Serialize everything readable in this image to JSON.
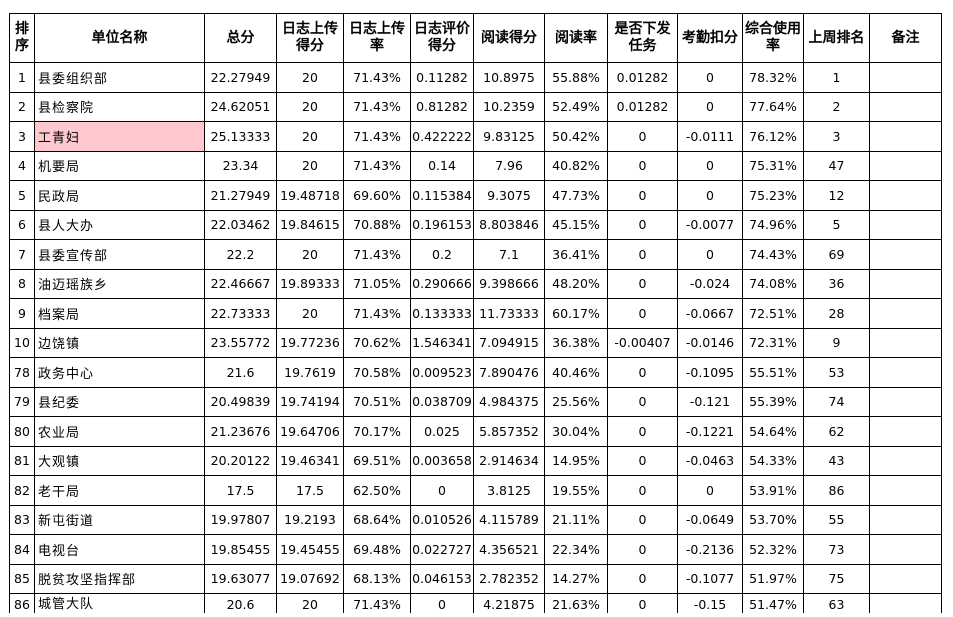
{
  "headers": [
    "排序",
    "单位名称",
    "总分",
    "日志上传得分",
    "日志上传率",
    "日志评价得分",
    "阅读得分",
    "阅读率",
    "是否下发任务",
    "考勤扣分",
    "综合使用率",
    "上周排名",
    "备注"
  ],
  "highlight_color": "#ffc7ce",
  "rows": [
    [
      "1",
      "县委组织部",
      "22.27949",
      "20",
      "71.43%",
      "0.11282",
      "10.8975",
      "55.88%",
      "0.01282",
      "0",
      "78.32%",
      "1",
      ""
    ],
    [
      "2",
      "县检察院",
      "24.62051",
      "20",
      "71.43%",
      "0.81282",
      "10.2359",
      "52.49%",
      "0.01282",
      "0",
      "77.64%",
      "2",
      ""
    ],
    [
      "3",
      "工青妇",
      "25.13333",
      "20",
      "71.43%",
      "0.422222",
      "9.83125",
      "50.42%",
      "0",
      "-0.0111",
      "76.12%",
      "3",
      ""
    ],
    [
      "4",
      "机要局",
      "23.34",
      "20",
      "71.43%",
      "0.14",
      "7.96",
      "40.82%",
      "0",
      "0",
      "75.31%",
      "47",
      ""
    ],
    [
      "5",
      "民政局",
      "21.27949",
      "19.48718",
      "69.60%",
      "0.115384",
      "9.3075",
      "47.73%",
      "0",
      "0",
      "75.23%",
      "12",
      ""
    ],
    [
      "6",
      "县人大办",
      "22.03462",
      "19.84615",
      "70.88%",
      "0.196153",
      "8.803846",
      "45.15%",
      "0",
      "-0.0077",
      "74.96%",
      "5",
      ""
    ],
    [
      "7",
      "县委宣传部",
      "22.2",
      "20",
      "71.43%",
      "0.2",
      "7.1",
      "36.41%",
      "0",
      "0",
      "74.43%",
      "69",
      ""
    ],
    [
      "8",
      "油迈瑶族乡",
      "22.46667",
      "19.89333",
      "71.05%",
      "0.290666",
      "9.398666",
      "48.20%",
      "0",
      "-0.024",
      "74.08%",
      "36",
      ""
    ],
    [
      "9",
      "档案局",
      "22.73333",
      "20",
      "71.43%",
      "0.133333",
      "11.73333",
      "60.17%",
      "0",
      "-0.0667",
      "72.51%",
      "28",
      ""
    ],
    [
      "10",
      "边饶镇",
      "23.55772",
      "19.77236",
      "70.62%",
      "1.546341",
      "7.094915",
      "36.38%",
      "-0.00407",
      "-0.0146",
      "72.31%",
      "9",
      ""
    ],
    [
      "78",
      "政务中心",
      "21.6",
      "19.7619",
      "70.58%",
      "0.009523",
      "7.890476",
      "40.46%",
      "0",
      "-0.1095",
      "55.51%",
      "53",
      ""
    ],
    [
      "79",
      "县纪委",
      "20.49839",
      "19.74194",
      "70.51%",
      "0.038709",
      "4.984375",
      "25.56%",
      "0",
      "-0.121",
      "55.39%",
      "74",
      ""
    ],
    [
      "80",
      "农业局",
      "21.23676",
      "19.64706",
      "70.17%",
      "0.025",
      "5.857352",
      "30.04%",
      "0",
      "-0.1221",
      "54.64%",
      "62",
      ""
    ],
    [
      "81",
      "大观镇",
      "20.20122",
      "19.46341",
      "69.51%",
      "0.003658",
      "2.914634",
      "14.95%",
      "0",
      "-0.0463",
      "54.33%",
      "43",
      ""
    ],
    [
      "82",
      "老干局",
      "17.5",
      "17.5",
      "62.50%",
      "0",
      "3.8125",
      "19.55%",
      "0",
      "0",
      "53.91%",
      "86",
      ""
    ],
    [
      "83",
      "新屯街道",
      "19.97807",
      "19.2193",
      "68.64%",
      "0.010526",
      "4.115789",
      "21.11%",
      "0",
      "-0.0649",
      "53.70%",
      "55",
      ""
    ],
    [
      "84",
      "电视台",
      "19.85455",
      "19.45455",
      "69.48%",
      "0.022727",
      "4.356521",
      "22.34%",
      "0",
      "-0.2136",
      "52.32%",
      "73",
      ""
    ],
    [
      "85",
      "脱贫攻坚指挥部",
      "19.63077",
      "19.07692",
      "68.13%",
      "0.046153",
      "2.782352",
      "14.27%",
      "0",
      "-0.1077",
      "51.97%",
      "75",
      ""
    ],
    [
      "86",
      "城管大队",
      "20.6",
      "20",
      "71.43%",
      "0",
      "4.21875",
      "21.63%",
      "0",
      "-0.15",
      "51.47%",
      "63",
      ""
    ]
  ]
}
